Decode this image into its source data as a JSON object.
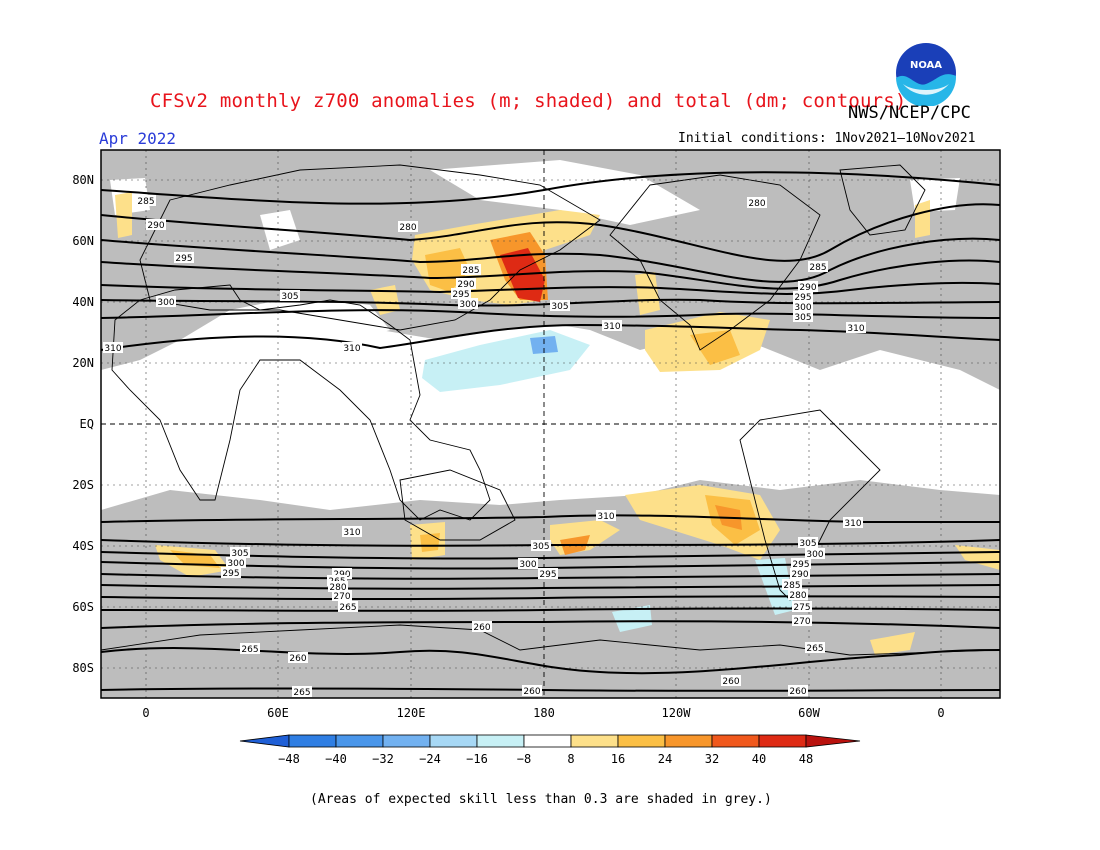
{
  "header": {
    "title": "CFSv2 monthly z700 anomalies (m; shaded) and total (dm; contours)",
    "agency": "NWS/NCEP/CPC",
    "period": "Apr 2022",
    "initial_conditions": "Initial conditions: 1Nov2021–10Nov2021",
    "logo_text": "NOAA"
  },
  "map": {
    "projection": "cylindrical equidistant",
    "lat_labels": [
      {
        "text": "80N",
        "lat": 80
      },
      {
        "text": "60N",
        "lat": 60
      },
      {
        "text": "40N",
        "lat": 40
      },
      {
        "text": "20N",
        "lat": 20
      },
      {
        "text": "EQ",
        "lat": 0
      },
      {
        "text": "20S",
        "lat": -20
      },
      {
        "text": "40S",
        "lat": -40
      },
      {
        "text": "60S",
        "lat": -60
      },
      {
        "text": "80S",
        "lat": -80
      }
    ],
    "lon_labels": [
      {
        "text": "0",
        "lon": 0
      },
      {
        "text": "60E",
        "lon": 60
      },
      {
        "text": "120E",
        "lon": 120
      },
      {
        "text": "180",
        "lon": 180
      },
      {
        "text": "120W",
        "lon": 240
      },
      {
        "text": "60W",
        "lon": 300
      },
      {
        "text": "0",
        "lon": 360
      }
    ],
    "contour_labels_nh": [
      "285",
      "290",
      "295",
      "300",
      "305",
      "310",
      "280"
    ],
    "contour_labels_sh": [
      "310",
      "305",
      "300",
      "295",
      "290",
      "285",
      "280",
      "275",
      "270",
      "265",
      "260"
    ],
    "colors": {
      "grey_low_skill": "#bdbdbd",
      "contour": "#000000"
    }
  },
  "colorbar": {
    "labels": [
      "−48",
      "−40",
      "−32",
      "−24",
      "−16",
      "−8",
      "8",
      "16",
      "24",
      "32",
      "40",
      "48"
    ],
    "colors": [
      "#1f5fd6",
      "#2f7ee3",
      "#4a96ea",
      "#72b1f0",
      "#a7d8f5",
      "#c7f0f5",
      "#ffffff",
      "#fde08a",
      "#fbbf45",
      "#f7962b",
      "#f0581c",
      "#de2a14",
      "#b9120e"
    ]
  },
  "footnote": "(Areas of expected skill less than 0.3 are shaded in grey.)"
}
